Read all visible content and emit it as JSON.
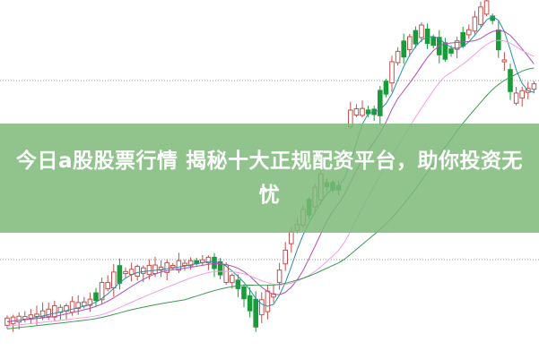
{
  "banner": {
    "title": "今日a股股票行情 揭秘十大正规配资平台，助你投资无忧"
  },
  "chart": {
    "kind": "candlestick",
    "colors": {
      "up": "#c0504d",
      "down": "#1a9b3a",
      "ma_short": "#2a8fa0",
      "ma_mid": "#b050b0",
      "ma_long": "#3a9a50",
      "ma_pink": "#f0a0e0",
      "grid": "#999999",
      "banner": "#7dba78"
    }
  }
}
